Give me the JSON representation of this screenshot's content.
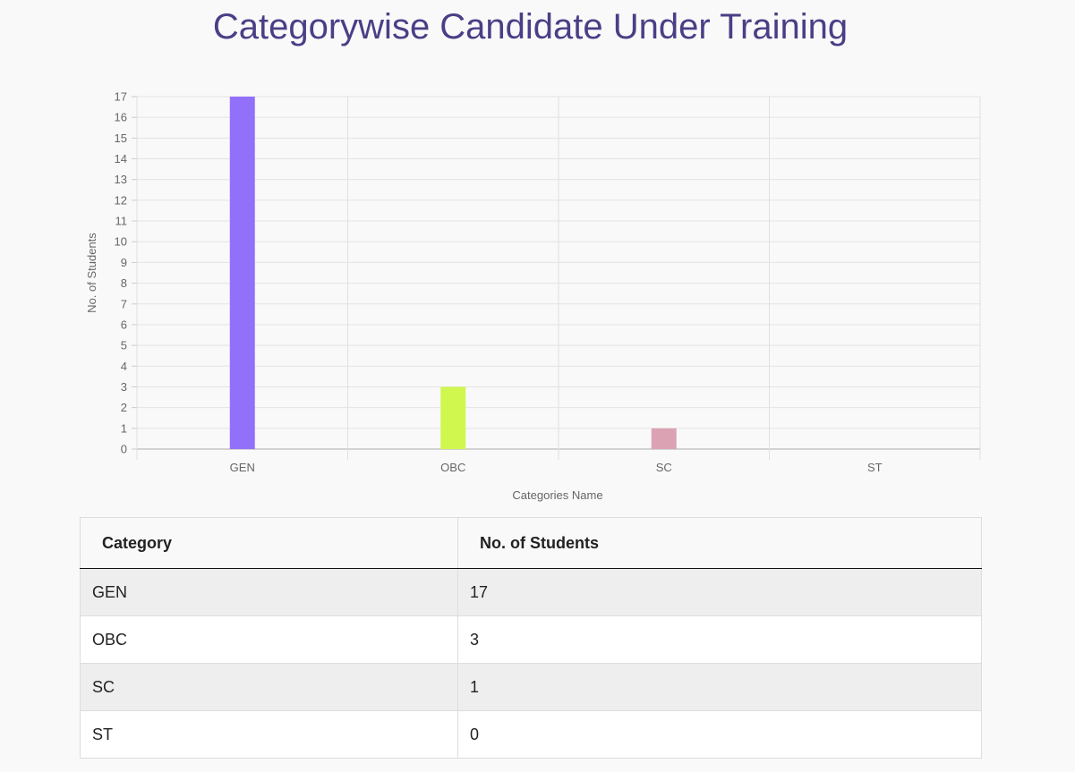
{
  "title": "Categorywise Candidate Under Training",
  "chart_data": {
    "type": "bar",
    "categories": [
      "GEN",
      "OBC",
      "SC",
      "ST"
    ],
    "values": [
      17,
      3,
      1,
      0
    ],
    "colors": [
      "#9370fa",
      "#d0f74e",
      "#dba2b3",
      "#aaaaaa"
    ],
    "title": "Categorywise Candidate Under Training",
    "xlabel": "Categories Name",
    "ylabel": "No. of Students",
    "ylim": [
      0,
      17
    ],
    "yticks": [
      0,
      1,
      2,
      3,
      4,
      5,
      6,
      7,
      8,
      9,
      10,
      11,
      12,
      13,
      14,
      15,
      16,
      17
    ],
    "grid": true,
    "legend": "none"
  },
  "table": {
    "headers": [
      "Category",
      "No. of Students"
    ],
    "rows": [
      [
        "GEN",
        "17"
      ],
      [
        "OBC",
        "3"
      ],
      [
        "SC",
        "1"
      ],
      [
        "ST",
        "0"
      ]
    ]
  }
}
